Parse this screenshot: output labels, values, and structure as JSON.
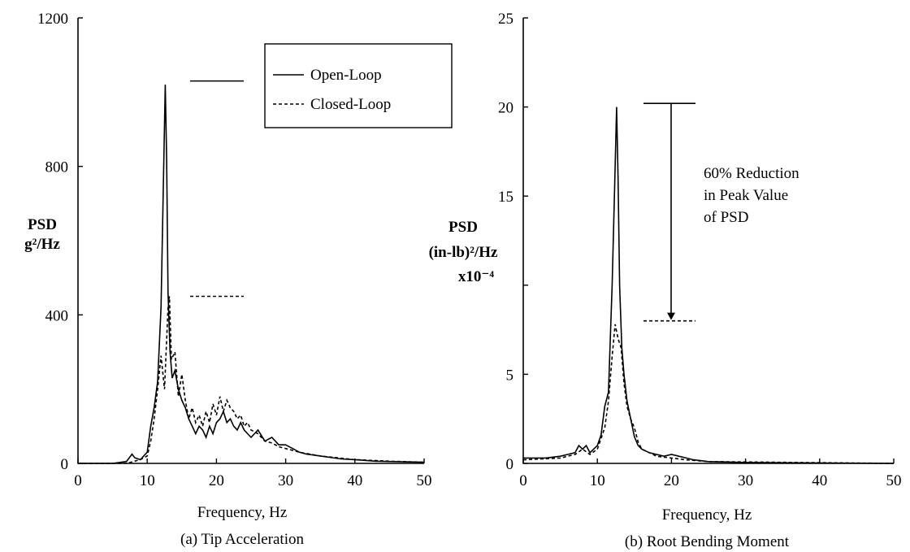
{
  "chart_data": [
    {
      "type": "line",
      "caption": "(a)  Tip Acceleration",
      "xlabel": "Frequency, Hz",
      "ylabel": [
        "PSD",
        "g²/Hz"
      ],
      "xlim": [
        0,
        50
      ],
      "ylim": [
        0,
        1200
      ],
      "xticks": [
        "0",
        "10",
        "20",
        "30",
        "40",
        "50"
      ],
      "yticks": [
        "0",
        "400",
        "800",
        "1200"
      ],
      "legend": {
        "placement": "top-right",
        "entries": [
          "Open-Loop",
          "Closed-Loop"
        ]
      },
      "peak_markers": {
        "open_loop": 1030,
        "closed_loop": 450
      },
      "series": [
        {
          "name": "Open-Loop",
          "style": "solid",
          "x": [
            0,
            5,
            7,
            7.8,
            8.2,
            9,
            10,
            10.5,
            11,
            11.5,
            12,
            12.3,
            12.6,
            12.8,
            13,
            13.3,
            13.6,
            14,
            14.5,
            15,
            15.5,
            16,
            16.5,
            17,
            17.5,
            18,
            18.5,
            19,
            19.5,
            20,
            20.5,
            21,
            21.5,
            22,
            22.5,
            23,
            23.5,
            24,
            24.5,
            25,
            26,
            27,
            28,
            29,
            30,
            31,
            32,
            33,
            35,
            38,
            40,
            43,
            45,
            50
          ],
          "values": [
            0,
            0,
            5,
            25,
            15,
            10,
            30,
            100,
            150,
            220,
            420,
            720,
            1020,
            820,
            460,
            300,
            230,
            250,
            200,
            170,
            150,
            120,
            100,
            80,
            100,
            90,
            70,
            100,
            80,
            110,
            120,
            140,
            110,
            120,
            100,
            90,
            110,
            90,
            80,
            70,
            90,
            60,
            70,
            50,
            50,
            40,
            30,
            25,
            20,
            12,
            10,
            6,
            5,
            3
          ]
        },
        {
          "name": "Closed-Loop",
          "style": "dashed",
          "x": [
            0,
            7,
            8,
            9,
            10,
            10.5,
            11,
            11.5,
            12,
            12.5,
            13,
            13.2,
            13.5,
            14,
            14.5,
            15,
            15.5,
            16,
            16.5,
            17,
            17.5,
            18,
            18.5,
            19,
            19.5,
            20,
            20.5,
            21,
            21.5,
            22,
            22.5,
            23,
            23.5,
            24,
            24.5,
            25,
            26,
            27,
            28,
            29,
            30,
            32,
            35,
            40,
            45,
            50
          ],
          "values": [
            0,
            0,
            5,
            10,
            20,
            60,
            120,
            200,
            290,
            200,
            420,
            450,
            280,
            300,
            180,
            240,
            170,
            120,
            150,
            110,
            130,
            100,
            140,
            110,
            160,
            130,
            180,
            140,
            170,
            150,
            140,
            120,
            130,
            100,
            110,
            90,
            80,
            60,
            55,
            45,
            40,
            30,
            20,
            10,
            6,
            3
          ]
        }
      ]
    },
    {
      "type": "line",
      "caption": "(b)  Root Bending Moment",
      "xlabel": "Frequency, Hz",
      "ylabel": [
        "PSD",
        "(in-lb)²/Hz",
        "x10⁻⁴"
      ],
      "xlim": [
        0,
        50
      ],
      "ylim": [
        0,
        25
      ],
      "xticks": [
        "0",
        "10",
        "20",
        "30",
        "40",
        "50"
      ],
      "yticks": [
        "0",
        "5",
        "15",
        "20",
        "25"
      ],
      "peak_markers": {
        "open_loop": 20.2,
        "closed_loop": 8
      },
      "annotation": [
        "60% Reduction",
        "in Peak Value",
        "of PSD"
      ],
      "series": [
        {
          "name": "Open-Loop",
          "style": "solid",
          "x": [
            0,
            3,
            5,
            6,
            7,
            7.5,
            8,
            8.5,
            9,
            10,
            10.5,
            11,
            11.5,
            12,
            12.3,
            12.6,
            12.8,
            13,
            13.3,
            13.6,
            14,
            14.5,
            15,
            15.5,
            16,
            17,
            18,
            19,
            20,
            21,
            22,
            23,
            25,
            30,
            50
          ],
          "values": [
            0.3,
            0.3,
            0.4,
            0.5,
            0.6,
            1.0,
            0.8,
            1.0,
            0.6,
            1.0,
            1.6,
            3.2,
            4.0,
            10.0,
            15.0,
            20.0,
            16.0,
            10.0,
            6.5,
            5.0,
            3.5,
            2.5,
            1.5,
            1.0,
            0.8,
            0.6,
            0.5,
            0.4,
            0.5,
            0.4,
            0.3,
            0.2,
            0.1,
            0.05,
            0.0
          ]
        },
        {
          "name": "Closed-Loop",
          "style": "dashed",
          "x": [
            0,
            5,
            7,
            8,
            9,
            10,
            11,
            11.5,
            12,
            12.4,
            12.8,
            13.2,
            13.6,
            14,
            14.5,
            15,
            15.5,
            16,
            17,
            18,
            20,
            22,
            25,
            50
          ],
          "values": [
            0.2,
            0.3,
            0.5,
            0.8,
            0.5,
            0.8,
            2.0,
            3.5,
            6.0,
            7.8,
            7.0,
            6.5,
            4.5,
            3.2,
            2.5,
            2.0,
            1.2,
            0.8,
            0.6,
            0.4,
            0.3,
            0.2,
            0.1,
            0.0
          ]
        }
      ]
    }
  ]
}
